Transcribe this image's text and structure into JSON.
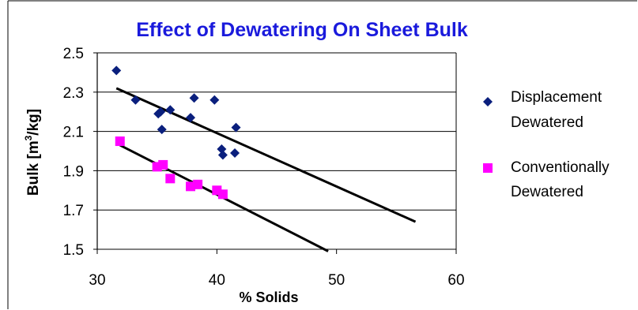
{
  "chart_data": {
    "type": "scatter",
    "title": "Effect of Dewatering On Sheet Bulk",
    "xlabel": "% Solids",
    "ylabel_main": "Bulk [m",
    "ylabel_sup": "3",
    "ylabel_tail": "/kg]",
    "xlim": [
      30,
      60
    ],
    "ylim": [
      1.5,
      2.5
    ],
    "x_ticks": [
      "30",
      "40",
      "50",
      "60"
    ],
    "y_ticks": [
      "1.5",
      "1.7",
      "1.9",
      "2.1",
      "2.3",
      "2.5"
    ],
    "grid": true,
    "legend_placement": "right",
    "series": [
      {
        "name_line1": "Displacement",
        "name_line2": "Dewatered",
        "marker": "diamond",
        "color": "#0a1f7d",
        "x": [
          31.6,
          33.2,
          35.1,
          35.3,
          35.4,
          36.1,
          37.8,
          38.1,
          39.8,
          40.4,
          40.5,
          41.5,
          41.6
        ],
        "y": [
          2.41,
          2.26,
          2.19,
          2.2,
          2.11,
          2.21,
          2.17,
          2.27,
          2.26,
          2.01,
          1.98,
          1.99,
          2.12
        ],
        "trend": {
          "x": [
            31.6,
            56.6
          ],
          "y": [
            2.32,
            1.64
          ]
        }
      },
      {
        "name_line1": "Conventionally",
        "name_line2": "Dewatered",
        "marker": "square",
        "color": "#ff00ff",
        "x": [
          31.9,
          35.0,
          35.5,
          36.1,
          37.8,
          38.4,
          40.0,
          40.5
        ],
        "y": [
          2.05,
          1.92,
          1.93,
          1.86,
          1.82,
          1.83,
          1.8,
          1.78
        ],
        "trend": {
          "x": [
            31.9,
            49.3
          ],
          "y": [
            2.03,
            1.49
          ]
        }
      }
    ]
  }
}
